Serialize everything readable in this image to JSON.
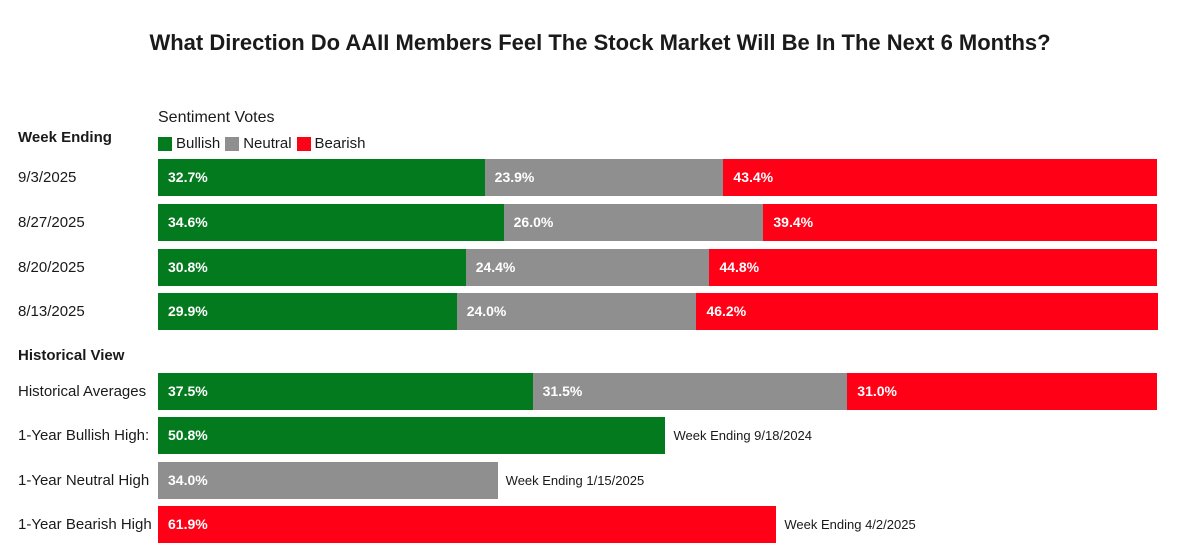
{
  "chart_data": {
    "type": "bar",
    "orientation": "horizontal",
    "stacked": true,
    "title": "What Direction Do AAII Members Feel The Stock Market Will Be In The Next 6 Months?",
    "legend_title": "Sentiment Votes",
    "legend": [
      {
        "name": "Bullish",
        "color": "#037a1e"
      },
      {
        "name": "Neutral",
        "color": "#8f8f8f"
      },
      {
        "name": "Bearish",
        "color": "#ff0017"
      }
    ],
    "colors": {
      "bullish": "#037a1e",
      "neutral": "#8f8f8f",
      "bearish": "#ff0017"
    },
    "weekly_header": "Week Ending",
    "weeks": [
      {
        "label": "9/3/2025",
        "bullish": 32.7,
        "neutral": 23.9,
        "bearish": 43.4
      },
      {
        "label": "8/27/2025",
        "bullish": 34.6,
        "neutral": 26.0,
        "bearish": 39.4
      },
      {
        "label": "8/20/2025",
        "bullish": 30.8,
        "neutral": 24.4,
        "bearish": 44.8
      },
      {
        "label": "8/13/2025",
        "bullish": 29.9,
        "neutral": 24.0,
        "bearish": 46.2
      }
    ],
    "historical_header": "Historical View",
    "historical_averages": {
      "label": "Historical Averages",
      "bullish": 37.5,
      "neutral": 31.5,
      "bearish": 31.0
    },
    "highs": [
      {
        "label": "1-Year Bullish High:",
        "category": "bullish",
        "value": 50.8,
        "note": "Week Ending 9/18/2024"
      },
      {
        "label": "1-Year Neutral High",
        "category": "neutral",
        "value": 34.0,
        "note": "Week Ending 1/15/2025"
      },
      {
        "label": "1-Year Bearish High",
        "category": "bearish",
        "value": 61.9,
        "note": "Week Ending 4/2/2025"
      }
    ],
    "xlim": [
      0,
      100
    ],
    "unit": "%"
  }
}
